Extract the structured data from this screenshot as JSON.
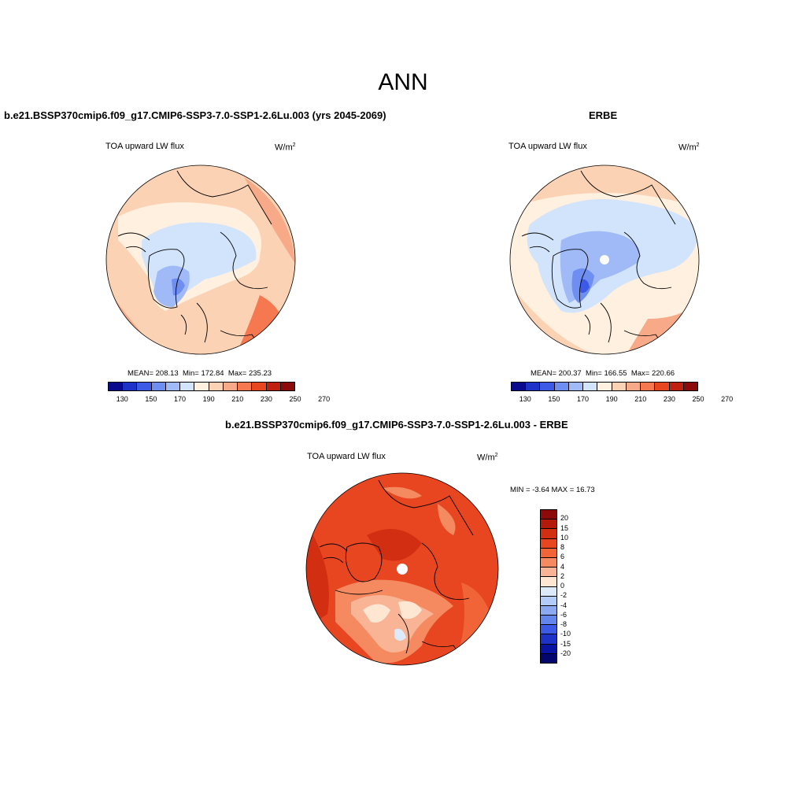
{
  "page": {
    "title": "ANN"
  },
  "panels": [
    {
      "case_title": "b.e21.BSSP370cmip6.f09_g17.CMIP6-SSP3-7.0-SSP1-2.6Lu.003 (yrs 2045-2069)",
      "variable": "TOA upward LW flux",
      "units": "W/m",
      "units_sup": "2",
      "stats": {
        "mean": "MEAN= 208.13",
        "min": "Min= 172.84",
        "max": "Max= 235.23"
      }
    },
    {
      "case_title": "ERBE",
      "variable": "TOA upward LW flux",
      "units": "W/m",
      "units_sup": "2",
      "stats": {
        "mean": "MEAN= 200.37",
        "min": "Min= 166.55",
        "max": "Max= 220.66"
      }
    }
  ],
  "diff_panel": {
    "case_title": "b.e21.BSSP370cmip6.f09_g17.CMIP6-SSP3-7.0-SSP1-2.6Lu.003 - ERBE",
    "variable": "TOA upward LW flux",
    "units": "W/m",
    "units_sup": "2",
    "minmax": "MIN =  -3.64 MAX =  16.73"
  },
  "colorbar_abs": {
    "labels": [
      "130",
      "150",
      "170",
      "190",
      "210",
      "230",
      "250",
      "270"
    ],
    "colors": [
      "#0a0a8c",
      "#1e32c8",
      "#3c5ae6",
      "#6e8ef2",
      "#a0baf8",
      "#d2e4fc",
      "#fff0e0",
      "#fcd2b4",
      "#f8aa88",
      "#f57850",
      "#e84620",
      "#c02010",
      "#8c0a0a"
    ]
  },
  "colorbar_diff": {
    "labels": [
      "20",
      "15",
      "10",
      "8",
      "6",
      "4",
      "2",
      "0",
      "-2",
      "-4",
      "-6",
      "-8",
      "-10",
      "-15",
      "-20"
    ],
    "colors": [
      "#8c0a0a",
      "#b41a0c",
      "#d22e12",
      "#e84620",
      "#f06438",
      "#f58a60",
      "#f9b496",
      "#fde6d2",
      "#dceafc",
      "#b4cdf8",
      "#8caaf2",
      "#6486ec",
      "#3c5ae6",
      "#1e32c8",
      "#0a14a0",
      "#05056e"
    ]
  }
}
